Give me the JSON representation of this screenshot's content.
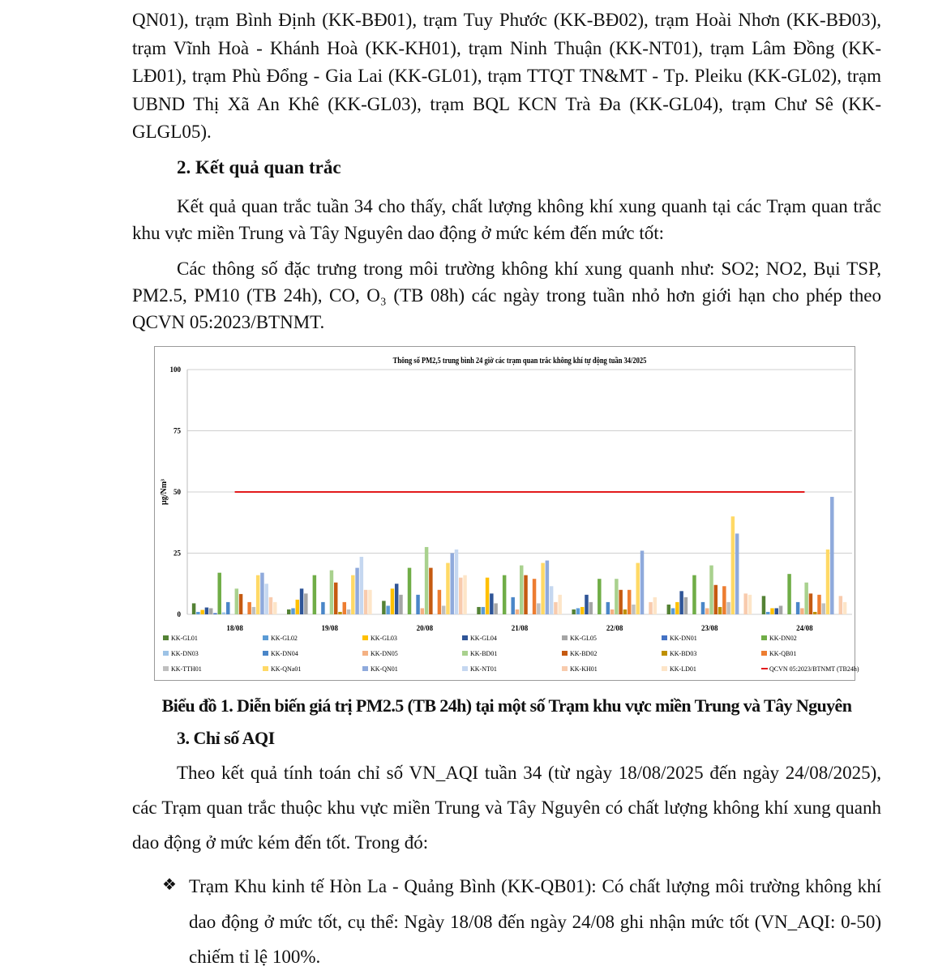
{
  "para1": "QN01), trạm Bình Định (KK-BĐ01), trạm Tuy Phước (KK-BĐ02), trạm Hoài Nhơn (KK-BĐ03), trạm Vĩnh Hoà - Khánh Hoà (KK-KH01), trạm Ninh Thuận (KK-NT01), trạm Lâm Đồng (KK-LĐ01), trạm Phù Đổng - Gia Lai (KK-GL01), trạm TTQT TN&MT - Tp. Pleiku (KK-GL02), trạm UBND Thị Xã An Khê (KK-GL03), trạm BQL KCN Trà Đa (KK-GL04), trạm Chư Sê (KK-GLGL05).",
  "heading2": "2. Kết quả quan trắc",
  "para2": "Kết quả quan trắc tuần 34 cho thấy, chất lượng không khí xung quanh tại các Trạm quan trắc khu vực miền Trung và Tây Nguyên dao động ở mức kém đến mức tốt:",
  "para3": "Các thông số đặc trưng trong môi trường không khí xung quanh như: SO2; NO2, Bụi TSP, PM2.5, PM10 (TB 24h), CO, O₃ (TB 08h) các ngày trong tuần nhỏ hơn giới hạn cho phép theo QCVN 05:2023/BTNMT.",
  "caption": "Biểu đồ 1. Diễn biến giá trị PM2.5 (TB 24h) tại một số Trạm khu vực miền Trung và Tây Nguyên",
  "heading3": "3. Chỉ số AQI",
  "para4": "Theo kết quả tính toán chỉ số VN_AQI tuần 34 (từ ngày 18/08/2025 đến ngày 24/08/2025), các Trạm quan trắc thuộc khu vực miền Trung và Tây Nguyên có chất lượng không khí xung quanh dao động ở mức kém đến tốt. Trong đó:",
  "bullet_icon": "diamond-bullet-icon",
  "bullet_symbol": "❖",
  "bullet1": "Trạm Khu kinh tế Hòn La - Quảng Bình (KK-QB01): Có chất lượng môi trường không khí dao động ở mức tốt, cụ thể: Ngày 18/08 đến ngày 24/08 ghi nhận mức tốt (VN_AQI: 0-50) chiếm tỉ lệ 100%.",
  "chart_data": {
    "type": "bar",
    "title": "Thông số PM2,5 trung bình 24 giờ các trạm quan trắc không khí tự động tuần 34/2025",
    "ylabel": "µg/Nm³",
    "xlabel": "",
    "ylim": [
      0,
      100
    ],
    "yticks": [
      "0",
      "25",
      "50",
      "75",
      "100"
    ],
    "grid": true,
    "legend_position": "bottom",
    "categories": [
      "18/08",
      "19/08",
      "20/08",
      "21/08",
      "22/08",
      "23/08",
      "24/08"
    ],
    "series": [
      {
        "name": "KK-GL01",
        "color": "#548235",
        "values": [
          4.5,
          2,
          5.5,
          3,
          2,
          4,
          7.5
        ]
      },
      {
        "name": "KK-GL02",
        "color": "#5b9bd5",
        "values": [
          1,
          2.5,
          3.5,
          3,
          2.5,
          2.5,
          1
        ]
      },
      {
        "name": "KK-GL03",
        "color": "#ffc000",
        "values": [
          1.8,
          6,
          10.5,
          15,
          3,
          5,
          2.5
        ]
      },
      {
        "name": "KK-GL04",
        "color": "#2f5597",
        "values": [
          2.8,
          10.5,
          12.5,
          8.5,
          8,
          9.5,
          2.5
        ]
      },
      {
        "name": "KK-GL05",
        "color": "#a5a5a5",
        "values": [
          2.5,
          8.5,
          8,
          4.5,
          5,
          7,
          3.5
        ]
      },
      {
        "name": "KK-DN01",
        "color": "#4472c4",
        "values": [
          0.5,
          0,
          0,
          0,
          0,
          0,
          0
        ]
      },
      {
        "name": "KK-DN02",
        "color": "#70ad47",
        "values": [
          17,
          16,
          19,
          16,
          14.5,
          16,
          16.5
        ]
      },
      {
        "name": "KK-DN03",
        "color": "#9dc3e6",
        "values": [
          0.8,
          0,
          0,
          0,
          0,
          0,
          0
        ]
      },
      {
        "name": "KK-DN04",
        "color": "#4a86c8",
        "values": [
          5,
          5,
          8,
          7,
          5,
          5,
          5
        ]
      },
      {
        "name": "KK-DN05",
        "color": "#f4b183",
        "values": [
          0,
          0,
          2.5,
          2,
          2,
          2.5,
          2.5
        ]
      },
      {
        "name": "KK-BD01",
        "color": "#a9d18e",
        "values": [
          10.5,
          18,
          27.5,
          20,
          14.5,
          20,
          13
        ]
      },
      {
        "name": "KK-BD02",
        "color": "#c55a11",
        "values": [
          8.3,
          13,
          19,
          16,
          10,
          12,
          8.5
        ]
      },
      {
        "name": "KK-BD03",
        "color": "#bf9000",
        "values": [
          0,
          1,
          0,
          0,
          2,
          3,
          1
        ]
      },
      {
        "name": "KK-QB01",
        "color": "#ed7d31",
        "values": [
          5,
          5,
          10,
          14.5,
          10,
          11.5,
          8
        ]
      },
      {
        "name": "KK-TTH01",
        "color": "#bfbfbf",
        "values": [
          3,
          2,
          3.5,
          4.5,
          4,
          5,
          4.5
        ]
      },
      {
        "name": "KK-QNa01",
        "color": "#ffd966",
        "values": [
          16,
          16,
          21,
          21,
          21,
          40,
          26.5
        ]
      },
      {
        "name": "KK-QN01",
        "color": "#8faadc",
        "values": [
          17,
          19,
          25,
          22,
          26,
          33,
          48
        ]
      },
      {
        "name": "KK-NT01",
        "color": "#c5d7f0",
        "values": [
          12.5,
          23.5,
          26.5,
          11.5,
          0,
          0,
          0
        ]
      },
      {
        "name": "KK-KH01",
        "color": "#f8cbad",
        "values": [
          7,
          10,
          15,
          5,
          5,
          8.5,
          7.5
        ]
      },
      {
        "name": "KK-LD01",
        "color": "#fde5c8",
        "values": [
          5,
          10,
          16,
          8,
          7,
          8,
          5
        ]
      }
    ],
    "reference_line": {
      "name": "QCVN 05:2023/BTNMT (TB24h)",
      "value": 50,
      "color": "#e31a1c"
    }
  }
}
